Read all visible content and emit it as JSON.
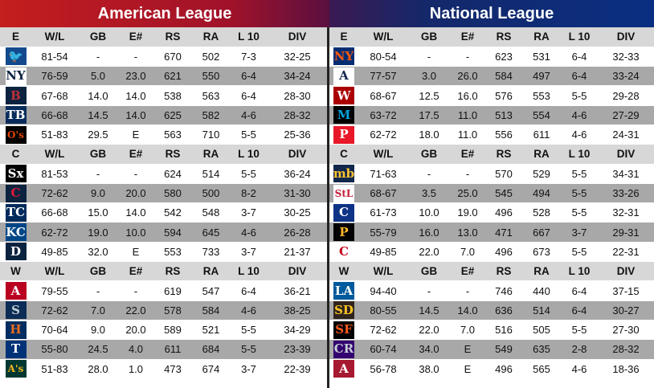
{
  "leagues": {
    "al": {
      "title": "American League"
    },
    "nl": {
      "title": "National League"
    }
  },
  "columns": [
    "W/L",
    "GB",
    "E#",
    "RS",
    "RA",
    "L 10",
    "DIV"
  ],
  "al_divisions": [
    {
      "label": "E",
      "teams": [
        {
          "logo": "blue-jays-logo-icon",
          "glyph": "🐦",
          "fg": "#ffffff",
          "bg": "#134a8e",
          "row": [
            "81-54",
            "-",
            "-",
            "670",
            "502",
            "7-3",
            "32-25"
          ]
        },
        {
          "logo": "yankees-logo-icon",
          "glyph": "NY",
          "fg": "#0c2340",
          "bg": "#ffffff",
          "row": [
            "76-59",
            "5.0",
            "23.0",
            "621",
            "550",
            "6-4",
            "34-24"
          ]
        },
        {
          "logo": "red-sox-logo-icon",
          "glyph": "B",
          "fg": "#bd3039",
          "bg": "#0c2340",
          "row": [
            "67-68",
            "14.0",
            "14.0",
            "538",
            "563",
            "6-4",
            "28-30"
          ]
        },
        {
          "logo": "rays-logo-icon",
          "glyph": "TB",
          "fg": "#ffffff",
          "bg": "#092c5c",
          "row": [
            "66-68",
            "14.5",
            "14.0",
            "625",
            "582",
            "4-6",
            "28-32"
          ]
        },
        {
          "logo": "orioles-logo-icon",
          "glyph": "O's",
          "fg": "#df4601",
          "bg": "#000000",
          "row": [
            "51-83",
            "29.5",
            "E",
            "563",
            "710",
            "5-5",
            "25-36"
          ]
        }
      ]
    },
    {
      "label": "C",
      "teams": [
        {
          "logo": "white-sox-logo-icon",
          "glyph": "Sx",
          "fg": "#ffffff",
          "bg": "#000000",
          "row": [
            "81-53",
            "-",
            "-",
            "624",
            "514",
            "5-5",
            "36-24"
          ]
        },
        {
          "logo": "guardians-logo-icon",
          "glyph": "C",
          "fg": "#e31937",
          "bg": "#0c2340",
          "row": [
            "72-62",
            "9.0",
            "20.0",
            "580",
            "500",
            "8-2",
            "31-30"
          ]
        },
        {
          "logo": "twins-logo-icon",
          "glyph": "TC",
          "fg": "#ffffff",
          "bg": "#002b5c",
          "row": [
            "66-68",
            "15.0",
            "14.0",
            "542",
            "548",
            "3-7",
            "30-25"
          ]
        },
        {
          "logo": "royals-logo-icon",
          "glyph": "KC",
          "fg": "#ffffff",
          "bg": "#004687",
          "row": [
            "62-72",
            "19.0",
            "10.0",
            "594",
            "645",
            "4-6",
            "26-28"
          ]
        },
        {
          "logo": "tigers-logo-icon",
          "glyph": "D",
          "fg": "#ffffff",
          "bg": "#0c2340",
          "row": [
            "49-85",
            "32.0",
            "E",
            "553",
            "733",
            "3-7",
            "21-37"
          ]
        }
      ]
    },
    {
      "label": "W",
      "teams": [
        {
          "logo": "angels-logo-icon",
          "glyph": "A",
          "fg": "#ffffff",
          "bg": "#ba0021",
          "row": [
            "79-55",
            "-",
            "-",
            "619",
            "547",
            "6-4",
            "36-21"
          ]
        },
        {
          "logo": "mariners-logo-icon",
          "glyph": "S",
          "fg": "#c4ced4",
          "bg": "#0c2c56",
          "row": [
            "72-62",
            "7.0",
            "22.0",
            "578",
            "584",
            "4-6",
            "38-25"
          ]
        },
        {
          "logo": "astros-logo-icon",
          "glyph": "H",
          "fg": "#eb6e1f",
          "bg": "#002d62",
          "row": [
            "70-64",
            "9.0",
            "20.0",
            "589",
            "521",
            "5-5",
            "34-29"
          ]
        },
        {
          "logo": "rangers-logo-icon",
          "glyph": "T",
          "fg": "#ffffff",
          "bg": "#003278",
          "row": [
            "55-80",
            "24.5",
            "4.0",
            "611",
            "684",
            "5-5",
            "23-39"
          ]
        },
        {
          "logo": "athletics-logo-icon",
          "glyph": "A's",
          "fg": "#efb21e",
          "bg": "#003831",
          "row": [
            "51-83",
            "28.0",
            "1.0",
            "473",
            "674",
            "3-7",
            "22-39"
          ]
        }
      ]
    }
  ],
  "nl_divisions": [
    {
      "label": "E",
      "teams": [
        {
          "logo": "mets-logo-icon",
          "glyph": "NY",
          "fg": "#ff5910",
          "bg": "#002d72",
          "row": [
            "80-54",
            "-",
            "-",
            "623",
            "531",
            "6-4",
            "32-33"
          ]
        },
        {
          "logo": "braves-logo-icon",
          "glyph": "A",
          "fg": "#13274f",
          "bg": "#ffffff",
          "row": [
            "77-57",
            "3.0",
            "26.0",
            "584",
            "497",
            "6-4",
            "33-24"
          ]
        },
        {
          "logo": "nationals-logo-icon",
          "glyph": "W",
          "fg": "#ffffff",
          "bg": "#ab0003",
          "row": [
            "68-67",
            "12.5",
            "16.0",
            "576",
            "553",
            "5-5",
            "29-28"
          ]
        },
        {
          "logo": "marlins-logo-icon",
          "glyph": "M",
          "fg": "#00a3e0",
          "bg": "#000000",
          "row": [
            "63-72",
            "17.5",
            "11.0",
            "513",
            "554",
            "4-6",
            "27-29"
          ]
        },
        {
          "logo": "phillies-logo-icon",
          "glyph": "P",
          "fg": "#ffffff",
          "bg": "#e81828",
          "row": [
            "62-72",
            "18.0",
            "11.0",
            "556",
            "611",
            "4-6",
            "24-31"
          ]
        }
      ]
    },
    {
      "label": "C",
      "teams": [
        {
          "logo": "brewers-logo-icon",
          "glyph": "mb",
          "fg": "#ffc52f",
          "bg": "#12284b",
          "row": [
            "71-63",
            "-",
            "-",
            "570",
            "529",
            "5-5",
            "34-31"
          ]
        },
        {
          "logo": "cardinals-logo-icon",
          "glyph": "StL",
          "fg": "#c41e3a",
          "bg": "#ffffff",
          "row": [
            "68-67",
            "3.5",
            "25.0",
            "545",
            "494",
            "5-5",
            "33-26"
          ]
        },
        {
          "logo": "cubs-logo-icon",
          "glyph": "C",
          "fg": "#ffffff",
          "bg": "#0e3386",
          "row": [
            "61-73",
            "10.0",
            "19.0",
            "496",
            "528",
            "5-5",
            "32-31"
          ]
        },
        {
          "logo": "pirates-logo-icon",
          "glyph": "P",
          "fg": "#fdb827",
          "bg": "#000000",
          "row": [
            "55-79",
            "16.0",
            "13.0",
            "471",
            "667",
            "3-7",
            "29-31"
          ]
        },
        {
          "logo": "reds-logo-icon",
          "glyph": "C",
          "fg": "#c6011f",
          "bg": "#ffffff",
          "row": [
            "49-85",
            "22.0",
            "7.0",
            "496",
            "673",
            "5-5",
            "22-31"
          ]
        }
      ]
    },
    {
      "label": "W",
      "teams": [
        {
          "logo": "dodgers-logo-icon",
          "glyph": "LA",
          "fg": "#ffffff",
          "bg": "#005a9c",
          "row": [
            "94-40",
            "-",
            "-",
            "746",
            "440",
            "6-4",
            "37-15"
          ]
        },
        {
          "logo": "padres-logo-icon",
          "glyph": "SD",
          "fg": "#ffc425",
          "bg": "#2f241d",
          "row": [
            "80-55",
            "14.5",
            "14.0",
            "636",
            "514",
            "6-4",
            "30-27"
          ]
        },
        {
          "logo": "giants-logo-icon",
          "glyph": "SF",
          "fg": "#fd5a1e",
          "bg": "#000000",
          "row": [
            "72-62",
            "22.0",
            "7.0",
            "516",
            "505",
            "5-5",
            "27-30"
          ]
        },
        {
          "logo": "rockies-logo-icon",
          "glyph": "CR",
          "fg": "#c4ced4",
          "bg": "#33006f",
          "row": [
            "60-74",
            "34.0",
            "E",
            "549",
            "635",
            "2-8",
            "28-32"
          ]
        },
        {
          "logo": "diamondbacks-logo-icon",
          "glyph": "A",
          "fg": "#ffffff",
          "bg": "#a71930",
          "row": [
            "56-78",
            "38.0",
            "E",
            "496",
            "565",
            "4-6",
            "18-36"
          ]
        }
      ]
    }
  ]
}
